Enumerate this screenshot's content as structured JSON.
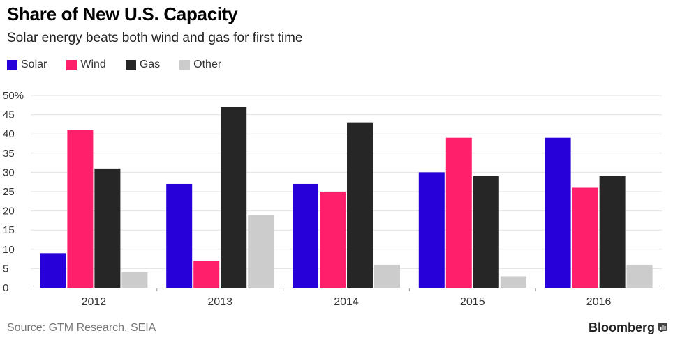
{
  "header": {
    "title": "Share of New U.S. Capacity",
    "subtitle": "Solar energy beats both wind and gas for first time"
  },
  "footer": {
    "source": "Source: GTM Research, SEIA",
    "brand": "Bloomberg"
  },
  "chart_data": {
    "type": "bar",
    "title": "Share of New U.S. Capacity",
    "subtitle": "Solar energy beats both wind and gas for first time",
    "xlabel": "",
    "ylabel": "",
    "categories": [
      "2012",
      "2013",
      "2014",
      "2015",
      "2016"
    ],
    "series": [
      {
        "name": "Solar",
        "color": "#2700d9",
        "values": [
          9,
          27,
          27,
          30,
          39
        ]
      },
      {
        "name": "Wind",
        "color": "#ff1f6b",
        "values": [
          41,
          7,
          25,
          39,
          26
        ]
      },
      {
        "name": "Gas",
        "color": "#262626",
        "values": [
          31,
          47,
          43,
          29,
          29
        ]
      },
      {
        "name": "Other",
        "color": "#cccccc",
        "values": [
          4,
          19,
          6,
          3,
          6
        ]
      }
    ],
    "ylim": [
      0,
      50
    ],
    "yticks": [
      0,
      5,
      10,
      15,
      20,
      25,
      30,
      35,
      40,
      45,
      50
    ],
    "ytick_labels": [
      "0",
      "5",
      "10",
      "15",
      "20",
      "25",
      "30",
      "35",
      "40",
      "45",
      "50%"
    ],
    "grid": true,
    "legend_position": "top-left"
  }
}
